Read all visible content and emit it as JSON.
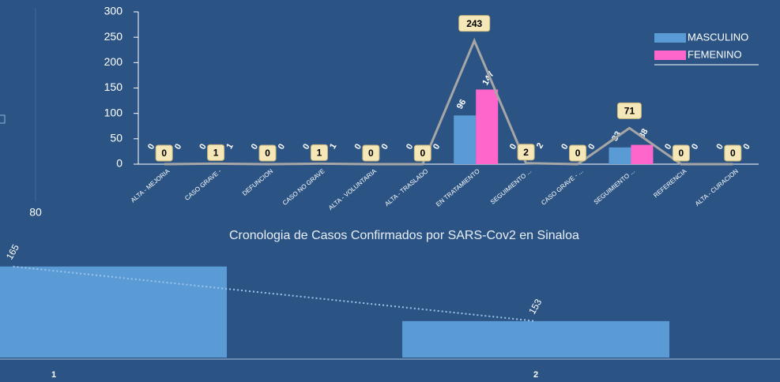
{
  "left_panel": {
    "label": "80"
  },
  "chart_data": [
    {
      "type": "bar",
      "categories": [
        "ALTA - MEJORIA",
        "CASO GRAVE -",
        "DEFUNCION",
        "CASO NO GRAVE",
        "ALTA - VOLUNTARIA",
        "ALTA - TRASLADO",
        "EN TRATAMIENTO",
        "SEGUIMIENTO ...",
        "CASO GRAVE - ...",
        "SEGUIMIENTO ...",
        "REFERENCIA",
        "ALTA - CURACION"
      ],
      "series": [
        {
          "name": "MASCULINO",
          "color": "#5b9bd5",
          "values": [
            0,
            0,
            0,
            0,
            0,
            0,
            96,
            0,
            0,
            33,
            0,
            0
          ]
        },
        {
          "name": "FEMENINO",
          "color": "#ff66cc",
          "values": [
            0,
            1,
            0,
            1,
            0,
            0,
            147,
            2,
            0,
            38,
            0,
            0
          ]
        }
      ],
      "totals": {
        "color": "#a6a6a6",
        "values": [
          0,
          1,
          0,
          1,
          0,
          0,
          243,
          2,
          0,
          71,
          0,
          0
        ]
      },
      "ylim": [
        0,
        300
      ],
      "yticks": [
        0,
        50,
        100,
        150,
        200,
        250,
        300
      ],
      "legend": "upper right"
    },
    {
      "type": "bar",
      "title": "Cronologia  de Casos  Confirmados  por SARS-Cov2  en Sinaloa",
      "categories": [
        "1",
        "2"
      ],
      "values": [
        165,
        153
      ],
      "color": "#5b9bd5",
      "ylim": [
        145,
        175
      ]
    }
  ]
}
